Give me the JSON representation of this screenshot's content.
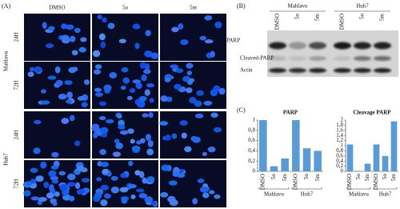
{
  "panel_a": {
    "label": "(A)",
    "columns": [
      "DMSO",
      "5o",
      "5m"
    ],
    "groups": [
      {
        "name": "Mahlavu",
        "rows": [
          "24H",
          "72H"
        ]
      },
      {
        "name": "Huh7",
        "rows": [
          "24H",
          "72H"
        ]
      }
    ]
  },
  "panel_b": {
    "label": "(B)",
    "groups": [
      "Mahlavu",
      "Huh7"
    ],
    "lanes": [
      "DMSO",
      "5o",
      "5m",
      "DMSO",
      "5o",
      "5m"
    ],
    "bands": [
      "PARP",
      "Cleaved-PARP",
      "Actin"
    ]
  },
  "panel_c": {
    "label": "(C)"
  },
  "chart_data": [
    {
      "type": "bar",
      "title": "PARP",
      "categories": [
        "DMSO",
        "5o",
        "5m",
        "DMSO",
        "5o",
        "5m"
      ],
      "groups": [
        "Mahlavu",
        "Huh7"
      ],
      "values": [
        1,
        0.1,
        0.25,
        1,
        0.45,
        0.4
      ],
      "color": "#5b9bd5",
      "ylim": [
        0,
        1
      ],
      "yticks": [
        0,
        {
          "value": 0.2,
          "label": "0,2"
        },
        {
          "value": 0.4,
          "label": "0,4"
        },
        {
          "value": 0.6,
          "label": "0,6"
        },
        {
          "value": 0.8,
          "label": "0,8"
        },
        1
      ]
    },
    {
      "type": "bar",
      "title": "Cleavage PARP",
      "categories": [
        "DMSO",
        "5o",
        "5m",
        "DMSO",
        "5o",
        "5m"
      ],
      "groups": [
        "Mahlavu",
        "Huh7"
      ],
      "values": [
        1.05,
        0.02,
        0.3,
        1.05,
        0.6,
        1.95
      ],
      "color": "#5b9bd5",
      "ylim": [
        0,
        2
      ],
      "yticks": [
        0,
        {
          "value": 0.2,
          "label": "0,2"
        },
        {
          "value": 0.4,
          "label": "0,4"
        },
        {
          "value": 0.6,
          "label": "0,6"
        },
        {
          "value": 0.8,
          "label": "0,8"
        },
        1,
        {
          "value": 1.2,
          "label": "1,2"
        },
        {
          "value": 1.4,
          "label": "1,4"
        },
        {
          "value": 1.6,
          "label": "1,6"
        },
        {
          "value": 1.8,
          "label": "1,8"
        },
        2
      ]
    }
  ]
}
